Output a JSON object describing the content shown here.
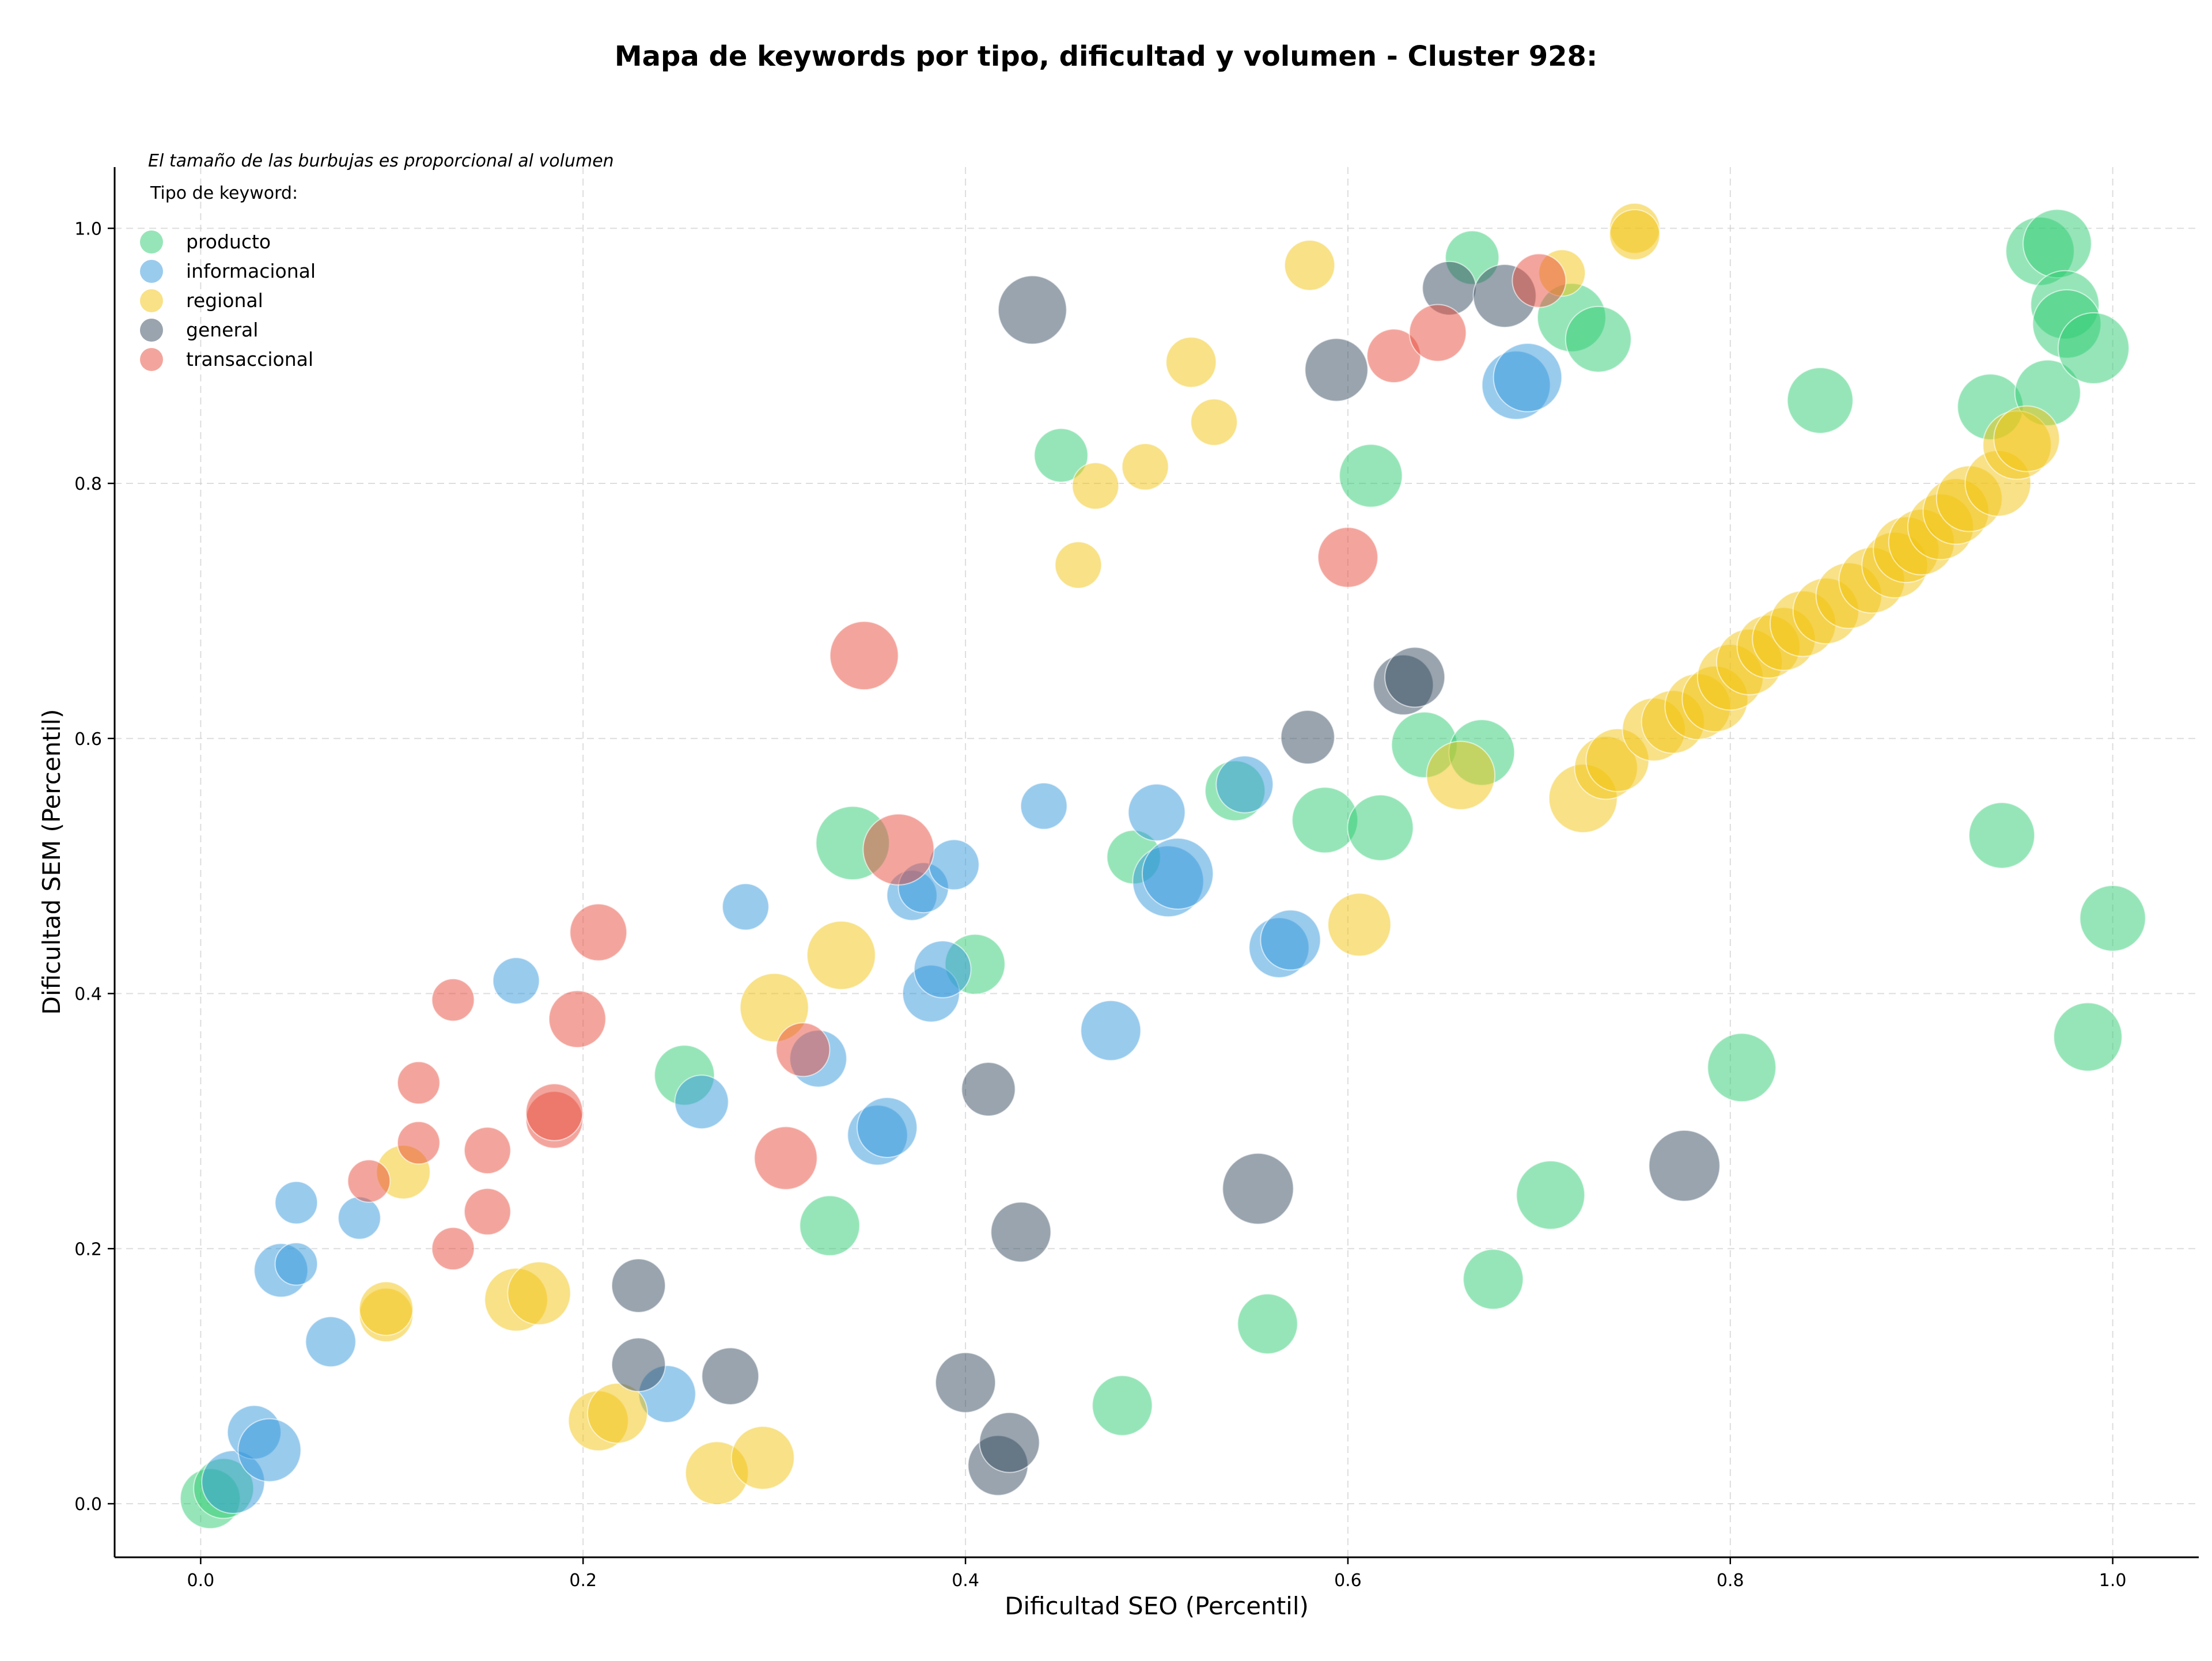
{
  "chart_data": {
    "type": "scatter",
    "title": "Mapa de keywords por tipo, dificultad y volumen - Cluster 928:",
    "xlabel": "Dificultad SEO (Percentil)",
    "ylabel": "Dificultad SEM (Percentil)",
    "xlim": [
      -0.045,
      1.045
    ],
    "ylim": [
      -0.042,
      1.048
    ],
    "xticks": [
      0.0,
      0.2,
      0.4,
      0.6,
      0.8,
      1.0
    ],
    "yticks": [
      0.0,
      0.2,
      0.4,
      0.6,
      0.8,
      1.0
    ],
    "grid": true,
    "bubble_note": "El tamaño de las burbujas es proporcional al volumen",
    "legend_title": "Tipo de keyword:",
    "legend_position": "top-left",
    "series": [
      {
        "name": "producto",
        "color": "#2ecc71",
        "points": [
          [
            0.005,
            0.004,
            1.0
          ],
          [
            0.012,
            0.012,
            1.0
          ],
          [
            0.253,
            0.336,
            1.0
          ],
          [
            0.329,
            0.218,
            1.0
          ],
          [
            0.341,
            0.518,
            1.5
          ],
          [
            0.405,
            0.423,
            1.0
          ],
          [
            0.482,
            0.077,
            1.0
          ],
          [
            0.488,
            0.507,
            0.8
          ],
          [
            0.45,
            0.822,
            0.8
          ],
          [
            0.541,
            0.559,
            1.0
          ],
          [
            0.558,
            0.141,
            1.0
          ],
          [
            0.588,
            0.536,
            1.2
          ],
          [
            0.612,
            0.806,
            1.1
          ],
          [
            0.617,
            0.53,
            1.2
          ],
          [
            0.64,
            0.595,
            1.2
          ],
          [
            0.665,
            0.977,
            0.8
          ],
          [
            0.67,
            0.589,
            1.2
          ],
          [
            0.676,
            0.176,
            1.0
          ],
          [
            0.706,
            0.242,
            1.3
          ],
          [
            0.717,
            0.93,
            1.3
          ],
          [
            0.731,
            0.913,
            1.2
          ],
          [
            0.806,
            0.342,
            1.3
          ],
          [
            0.847,
            0.865,
            1.2
          ],
          [
            0.936,
            0.86,
            1.2
          ],
          [
            0.942,
            0.524,
            1.2
          ],
          [
            0.962,
            0.982,
            1.3
          ],
          [
            0.966,
            0.871,
            1.2
          ],
          [
            0.971,
            0.988,
            1.3
          ],
          [
            0.975,
            0.94,
            1.3
          ],
          [
            0.976,
            0.925,
            1.3
          ],
          [
            0.99,
            0.906,
            1.4
          ],
          [
            0.987,
            0.366,
            1.3
          ],
          [
            1.0,
            0.459,
            1.2
          ]
        ]
      },
      {
        "name": "informacional",
        "color": "#3498db",
        "points": [
          [
            0.017,
            0.017,
            1.1
          ],
          [
            0.028,
            0.056,
            0.8
          ],
          [
            0.036,
            0.042,
            1.1
          ],
          [
            0.042,
            0.183,
            0.8
          ],
          [
            0.05,
            0.236,
            0.5
          ],
          [
            0.05,
            0.188,
            0.5
          ],
          [
            0.068,
            0.127,
            0.7
          ],
          [
            0.083,
            0.224,
            0.5
          ],
          [
            0.165,
            0.41,
            0.6
          ],
          [
            0.244,
            0.086,
            0.9
          ],
          [
            0.262,
            0.315,
            0.8
          ],
          [
            0.285,
            0.468,
            0.6
          ],
          [
            0.323,
            0.349,
            0.9
          ],
          [
            0.354,
            0.289,
            1.0
          ],
          [
            0.359,
            0.295,
            1.0
          ],
          [
            0.372,
            0.477,
            0.7
          ],
          [
            0.378,
            0.483,
            0.7
          ],
          [
            0.382,
            0.4,
            0.9
          ],
          [
            0.388,
            0.419,
            0.9
          ],
          [
            0.394,
            0.501,
            0.7
          ],
          [
            0.441,
            0.547,
            0.6
          ],
          [
            0.476,
            0.371,
            1.0
          ],
          [
            0.5,
            0.542,
            0.9
          ],
          [
            0.506,
            0.488,
            1.4
          ],
          [
            0.511,
            0.494,
            1.4
          ],
          [
            0.546,
            0.564,
            0.9
          ],
          [
            0.564,
            0.436,
            1.0
          ],
          [
            0.57,
            0.442,
            1.0
          ],
          [
            0.688,
            0.877,
            1.3
          ],
          [
            0.694,
            0.883,
            1.3
          ]
        ]
      },
      {
        "name": "regional",
        "color": "#f1c40f",
        "points": [
          [
            0.097,
            0.148,
            0.8
          ],
          [
            0.097,
            0.153,
            0.8
          ],
          [
            0.106,
            0.26,
            0.8
          ],
          [
            0.165,
            0.16,
            1.1
          ],
          [
            0.177,
            0.165,
            1.1
          ],
          [
            0.208,
            0.065,
            1.0
          ],
          [
            0.218,
            0.071,
            1.0
          ],
          [
            0.27,
            0.024,
            1.1
          ],
          [
            0.294,
            0.036,
            1.1
          ],
          [
            0.3,
            0.389,
            1.3
          ],
          [
            0.335,
            0.43,
            1.3
          ],
          [
            0.459,
            0.736,
            0.6
          ],
          [
            0.468,
            0.798,
            0.6
          ],
          [
            0.494,
            0.813,
            0.6
          ],
          [
            0.518,
            0.895,
            0.7
          ],
          [
            0.53,
            0.848,
            0.6
          ],
          [
            0.58,
            0.971,
            0.7
          ],
          [
            0.606,
            0.454,
            1.1
          ],
          [
            0.659,
            0.571,
            1.3
          ],
          [
            0.712,
            0.965,
            0.6
          ],
          [
            0.723,
            0.553,
            1.3
          ],
          [
            0.735,
            0.577,
            1.1
          ],
          [
            0.741,
            0.583,
            1.1
          ],
          [
            0.75,
            1.0,
            0.7
          ],
          [
            0.75,
            0.995,
            0.7
          ],
          [
            0.76,
            0.607,
            1.1
          ],
          [
            0.77,
            0.613,
            1.1
          ],
          [
            0.783,
            0.625,
            1.2
          ],
          [
            0.792,
            0.631,
            1.2
          ],
          [
            0.8,
            0.648,
            1.2
          ],
          [
            0.81,
            0.66,
            1.2
          ],
          [
            0.82,
            0.672,
            1.1
          ],
          [
            0.828,
            0.678,
            1.1
          ],
          [
            0.838,
            0.69,
            1.2
          ],
          [
            0.85,
            0.7,
            1.2
          ],
          [
            0.862,
            0.712,
            1.2
          ],
          [
            0.874,
            0.724,
            1.2
          ],
          [
            0.886,
            0.736,
            1.2
          ],
          [
            0.892,
            0.748,
            1.2
          ],
          [
            0.9,
            0.754,
            1.2
          ],
          [
            0.91,
            0.766,
            1.2
          ],
          [
            0.918,
            0.778,
            1.2
          ],
          [
            0.925,
            0.788,
            1.2
          ],
          [
            0.94,
            0.8,
            1.2
          ],
          [
            0.95,
            0.83,
            1.3
          ],
          [
            0.955,
            0.835,
            1.2
          ]
        ]
      },
      {
        "name": "general",
        "color": "#34495e",
        "points": [
          [
            0.229,
            0.171,
            0.8
          ],
          [
            0.229,
            0.109,
            0.8
          ],
          [
            0.277,
            0.1,
            0.9
          ],
          [
            0.4,
            0.095,
            1.0
          ],
          [
            0.412,
            0.325,
            0.8
          ],
          [
            0.417,
            0.03,
            1.0
          ],
          [
            0.423,
            0.048,
            1.0
          ],
          [
            0.429,
            0.213,
            1.0
          ],
          [
            0.435,
            0.936,
            1.3
          ],
          [
            0.553,
            0.247,
            1.4
          ],
          [
            0.579,
            0.601,
            0.8
          ],
          [
            0.594,
            0.889,
            1.1
          ],
          [
            0.629,
            0.642,
            1.0
          ],
          [
            0.635,
            0.648,
            1.0
          ],
          [
            0.653,
            0.953,
            0.8
          ],
          [
            0.682,
            0.947,
            1.1
          ],
          [
            0.776,
            0.265,
            1.4
          ]
        ]
      },
      {
        "name": "transaccional",
        "color": "#e74c3c",
        "points": [
          [
            0.088,
            0.253,
            0.5
          ],
          [
            0.114,
            0.33,
            0.5
          ],
          [
            0.114,
            0.283,
            0.5
          ],
          [
            0.132,
            0.395,
            0.5
          ],
          [
            0.132,
            0.2,
            0.5
          ],
          [
            0.15,
            0.277,
            0.6
          ],
          [
            0.15,
            0.229,
            0.6
          ],
          [
            0.185,
            0.301,
            0.9
          ],
          [
            0.185,
            0.307,
            0.9
          ],
          [
            0.197,
            0.38,
            0.9
          ],
          [
            0.208,
            0.448,
            0.9
          ],
          [
            0.306,
            0.271,
            1.1
          ],
          [
            0.315,
            0.356,
            0.8
          ],
          [
            0.347,
            0.665,
            1.3
          ],
          [
            0.365,
            0.513,
            1.4
          ],
          [
            0.6,
            0.742,
            1.0
          ],
          [
            0.624,
            0.9,
            0.8
          ],
          [
            0.647,
            0.918,
            0.9
          ],
          [
            0.7,
            0.959,
            0.8
          ]
        ]
      }
    ]
  }
}
